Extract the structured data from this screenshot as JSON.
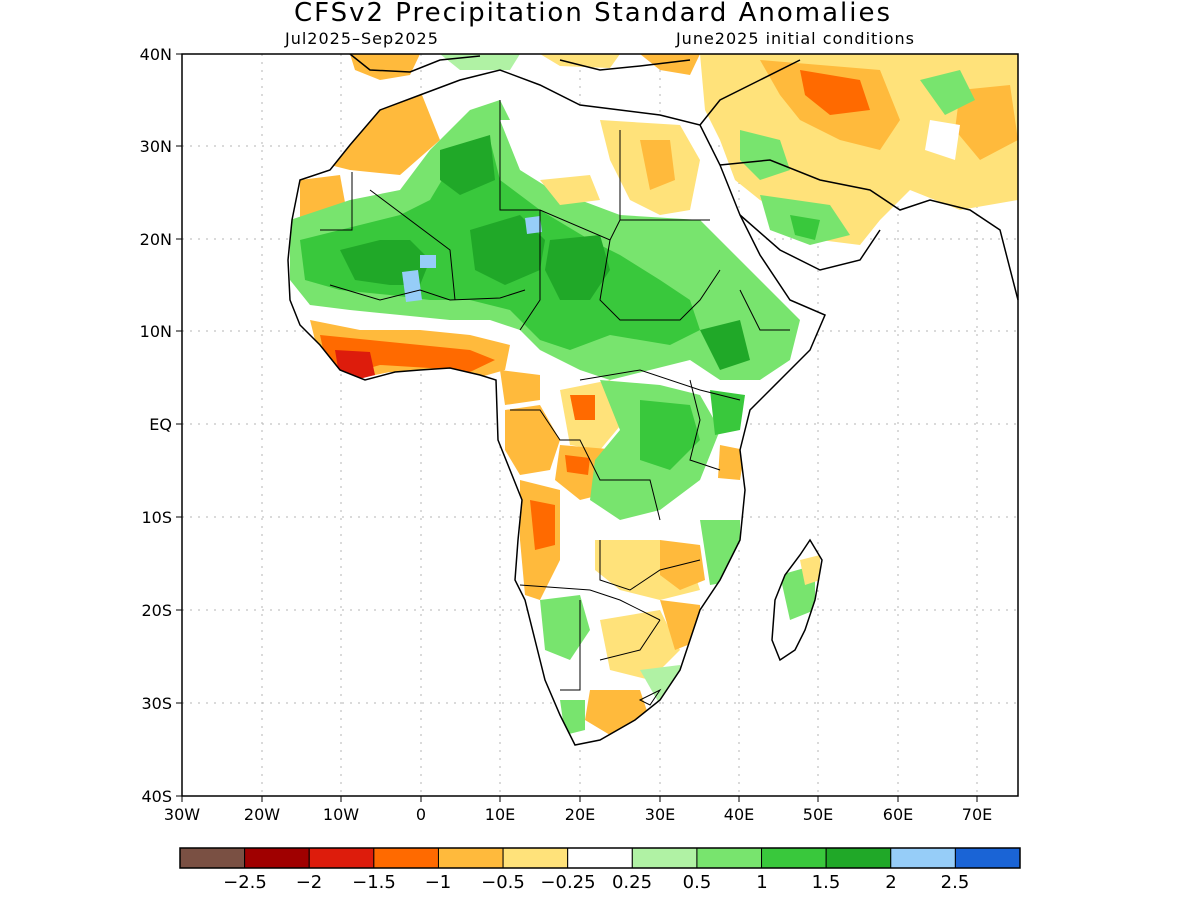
{
  "title": "CFSv2 Precipitation Standard Anomalies",
  "subtitle_left": "Jul2025–Sep2025",
  "subtitle_right": "June2025 initial conditions",
  "lat_ticks": [
    "40N",
    "30N",
    "20N",
    "10N",
    "EQ",
    "10S",
    "20S",
    "30S",
    "40S"
  ],
  "lon_ticks": [
    "30W",
    "20W",
    "10W",
    "0",
    "10E",
    "20E",
    "30E",
    "40E",
    "50E",
    "60E",
    "70E"
  ],
  "colorbar": {
    "colors": [
      "#7a5043",
      "#a00000",
      "#dd1c0c",
      "#ff6a00",
      "#ffba3c",
      "#ffe27a",
      "#ffffff",
      "#b0f2a4",
      "#78e46e",
      "#39c83c",
      "#20a828",
      "#96cdf8",
      "#1a64d6"
    ],
    "labels": [
      "−2.5",
      "−2",
      "−1.5",
      "−1",
      "−0.5",
      "−0.25",
      "0.25",
      "0.5",
      "1",
      "1.5",
      "2",
      "2.5"
    ]
  },
  "palette": {
    "dry_light": "#ffe27a",
    "dry_mid": "#ffba3c",
    "dry_strong": "#ff6a00",
    "dry_severe": "#dd1c0c",
    "wet_light": "#b0f2a4",
    "wet_mid": "#78e46e",
    "wet_strong": "#39c83c",
    "wet_very_strong": "#20a828",
    "wet_extreme": "#96cdf8"
  }
}
